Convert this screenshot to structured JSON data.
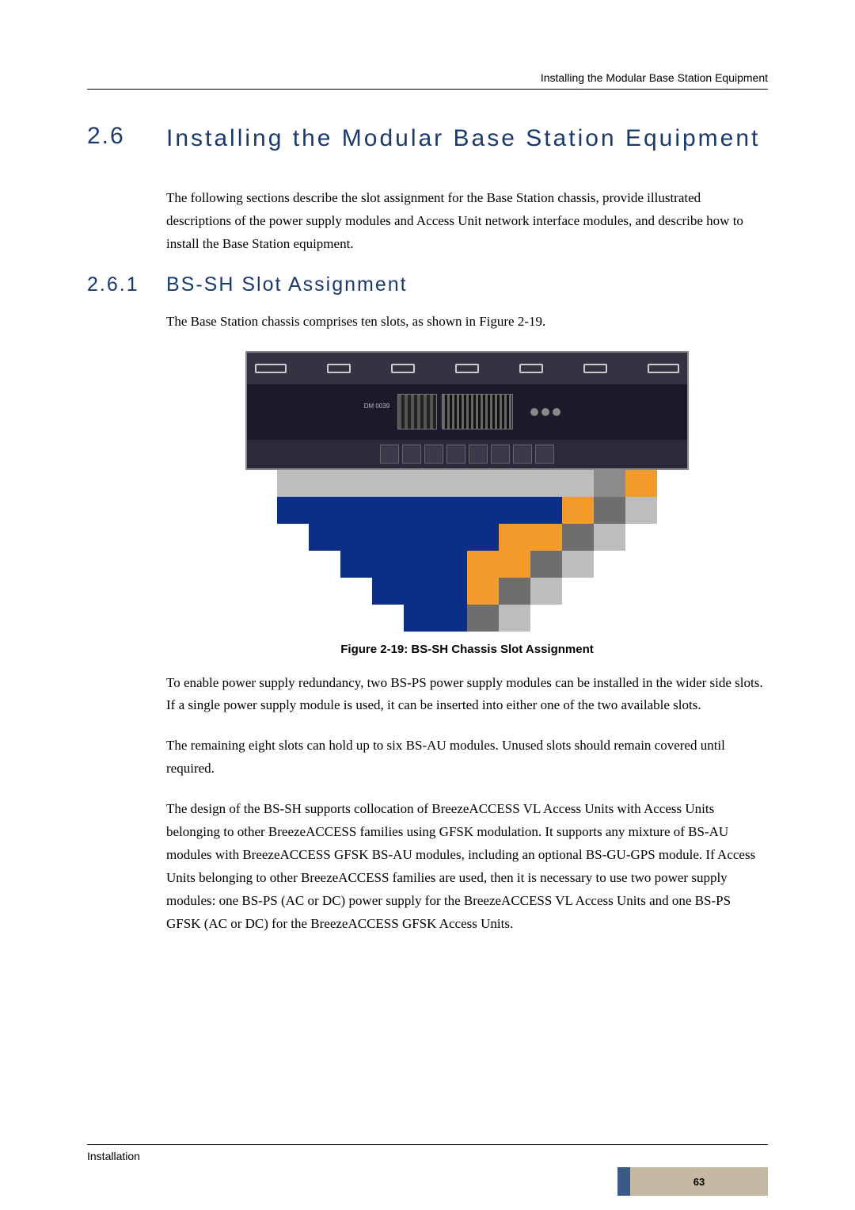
{
  "header": {
    "running_title": "Installing the Modular Base Station Equipment"
  },
  "section": {
    "number": "2.6",
    "title": "Installing the Modular Base Station Equipment",
    "intro": "The following sections describe the slot assignment for the Base Station chassis, provide illustrated descriptions of the power supply modules and Access Unit network interface modules, and describe how to install the Base Station equipment."
  },
  "subsection": {
    "number": "2.6.1",
    "title": "BS-SH Slot Assignment",
    "lead": "The Base Station chassis comprises ten slots, as shown in Figure 2-19."
  },
  "figure": {
    "caption": "Figure 2-19: BS-SH Chassis Slot Assignment",
    "chassis_label": "DM 0039",
    "pixel_rows": [
      [
        "#ffffff",
        "#bdbdbd",
        "#bdbdbd",
        "#bdbdbd",
        "#bdbdbd",
        "#bdbdbd",
        "#bdbdbd",
        "#bdbdbd",
        "#bdbdbd",
        "#bdbdbd",
        "#bdbdbd",
        "#8c8c8c",
        "#F29B2C",
        "#ffffff"
      ],
      [
        "#ffffff",
        "#0b2e87",
        "#0b2e87",
        "#0b2e87",
        "#0b2e87",
        "#0b2e87",
        "#0b2e87",
        "#0b2e87",
        "#0b2e87",
        "#0b2e87",
        "#F29B2C",
        "#6e6e6e",
        "#bdbdbd",
        "#ffffff"
      ],
      [
        "#ffffff",
        "#ffffff",
        "#0b2e87",
        "#0b2e87",
        "#0b2e87",
        "#0b2e87",
        "#0b2e87",
        "#0b2e87",
        "#F29B2C",
        "#F29B2C",
        "#6e6e6e",
        "#bdbdbd",
        "#ffffff",
        "#ffffff"
      ],
      [
        "#ffffff",
        "#ffffff",
        "#ffffff",
        "#0b2e87",
        "#0b2e87",
        "#0b2e87",
        "#0b2e87",
        "#F29B2C",
        "#F29B2C",
        "#6e6e6e",
        "#bdbdbd",
        "#ffffff",
        "#ffffff",
        "#ffffff"
      ],
      [
        "#ffffff",
        "#ffffff",
        "#ffffff",
        "#ffffff",
        "#0b2e87",
        "#0b2e87",
        "#0b2e87",
        "#F29B2C",
        "#6e6e6e",
        "#bdbdbd",
        "#ffffff",
        "#ffffff",
        "#ffffff",
        "#ffffff"
      ],
      [
        "#ffffff",
        "#ffffff",
        "#ffffff",
        "#ffffff",
        "#ffffff",
        "#0b2e87",
        "#0b2e87",
        "#6e6e6e",
        "#bdbdbd",
        "#ffffff",
        "#ffffff",
        "#ffffff",
        "#ffffff",
        "#ffffff"
      ]
    ]
  },
  "paragraphs": {
    "p1": "To enable power supply redundancy, two BS-PS power supply modules can be installed in the wider side slots. If a single power supply module is used, it can be inserted into either one of the two available slots.",
    "p2": "The remaining eight slots can hold up to six BS-AU modules. Unused slots should remain covered until required.",
    "p3": "The design of the BS-SH supports collocation of BreezeACCESS VL Access Units with Access Units belonging to other BreezeACCESS families using GFSK modulation. It supports any mixture of BS-AU modules with BreezeACCESS GFSK BS-AU modules, including an optional BS-GU-GPS module. If Access Units belonging to other BreezeACCESS families are used, then it is necessary to use two power supply modules: one BS-PS (AC or DC) power supply for the BreezeACCESS VL Access Units and one BS-PS GFSK (AC or DC) for the BreezeACCESS GFSK Access Units."
  },
  "footer": {
    "chapter": "Installation",
    "page_number": "63"
  },
  "colors": {
    "heading": "#1a3a6e",
    "footer_box_bg": "#c5b9a3",
    "footer_box_accent": "#3a5a8a"
  }
}
